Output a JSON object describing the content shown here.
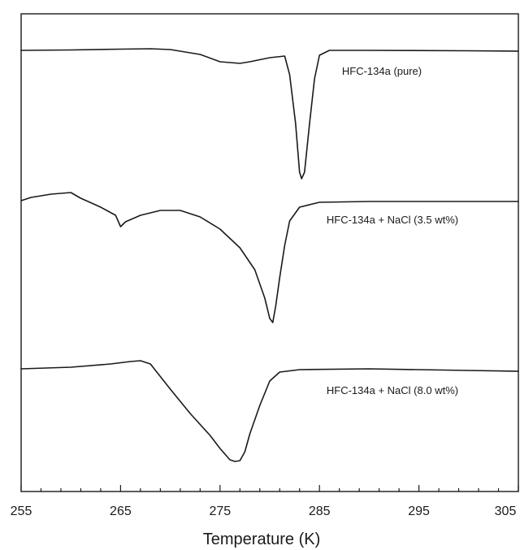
{
  "chart_data": {
    "type": "line",
    "xlabel": "Temperature (K)",
    "ylabel": "",
    "xlim": [
      255,
      305
    ],
    "x_ticks": [
      255,
      265,
      275,
      285,
      295,
      305
    ],
    "x_minor_step": 2,
    "y_ticks_shown": false,
    "grid": false,
    "series": [
      {
        "name": "HFC-134a (pure)",
        "points": [
          [
            255,
            0
          ],
          [
            260,
            0.5
          ],
          [
            265,
            1.5
          ],
          [
            268,
            2
          ],
          [
            270,
            1
          ],
          [
            273,
            -5
          ],
          [
            275,
            -14
          ],
          [
            277,
            -16
          ],
          [
            278,
            -14
          ],
          [
            280,
            -9
          ],
          [
            281.5,
            -7
          ],
          [
            282,
            -30
          ],
          [
            282.6,
            -90
          ],
          [
            283,
            -150
          ],
          [
            283.2,
            -158
          ],
          [
            283.5,
            -150
          ],
          [
            284,
            -90
          ],
          [
            284.5,
            -35
          ],
          [
            285,
            -6
          ],
          [
            286,
            0
          ],
          [
            290,
            0
          ],
          [
            300,
            -0.5
          ],
          [
            305,
            -1
          ]
        ]
      },
      {
        "name": "HFC-134a + NaCl (3.5 wt%)",
        "points": [
          [
            255,
            0
          ],
          [
            256,
            4
          ],
          [
            258,
            8
          ],
          [
            260,
            10
          ],
          [
            261,
            3
          ],
          [
            263,
            -8
          ],
          [
            264.5,
            -18
          ],
          [
            265,
            -32
          ],
          [
            265.5,
            -26
          ],
          [
            267,
            -18
          ],
          [
            269,
            -12
          ],
          [
            271,
            -12
          ],
          [
            273,
            -20
          ],
          [
            275,
            -35
          ],
          [
            277,
            -58
          ],
          [
            278.5,
            -85
          ],
          [
            279.5,
            -120
          ],
          [
            280,
            -145
          ],
          [
            280.3,
            -150
          ],
          [
            280.6,
            -130
          ],
          [
            281,
            -95
          ],
          [
            281.5,
            -55
          ],
          [
            282,
            -25
          ],
          [
            283,
            -8
          ],
          [
            285,
            -2
          ],
          [
            290,
            -1
          ],
          [
            305,
            -1
          ]
        ]
      },
      {
        "name": "HFC-134a + NaCl (8.0 wt%)",
        "points": [
          [
            255,
            0
          ],
          [
            260,
            2
          ],
          [
            264,
            6
          ],
          [
            266,
            9
          ],
          [
            267,
            10
          ],
          [
            268,
            6
          ],
          [
            270,
            -25
          ],
          [
            272,
            -55
          ],
          [
            274,
            -82
          ],
          [
            275,
            -98
          ],
          [
            276,
            -112
          ],
          [
            276.5,
            -114
          ],
          [
            277,
            -113
          ],
          [
            277.5,
            -102
          ],
          [
            278,
            -80
          ],
          [
            279,
            -45
          ],
          [
            280,
            -15
          ],
          [
            281,
            -4
          ],
          [
            283,
            -1
          ],
          [
            290,
            0
          ],
          [
            300,
            -2
          ],
          [
            305,
            -3
          ]
        ]
      }
    ]
  }
}
